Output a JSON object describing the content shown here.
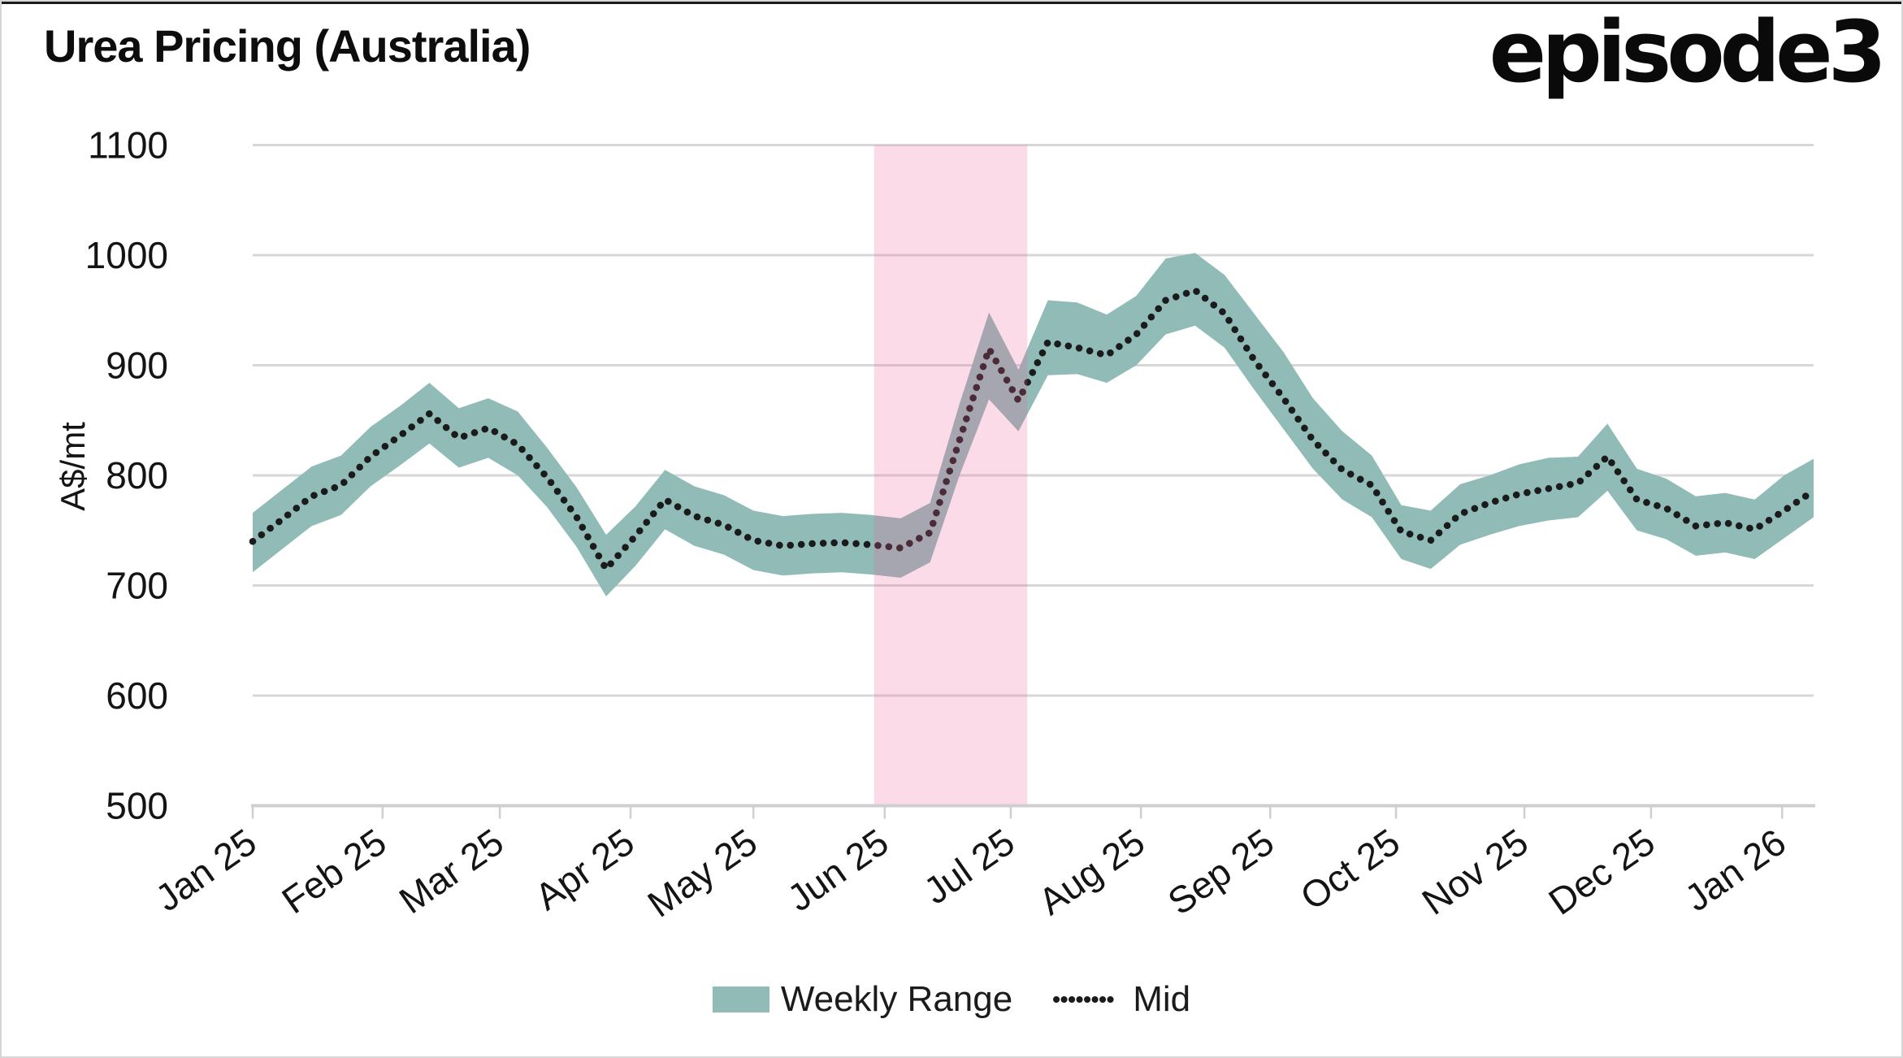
{
  "header": {
    "title": "Urea Pricing (Australia)",
    "logo": "episode3"
  },
  "chart_data": {
    "type": "area",
    "subtype": "range-band-with-dotted-mid-line",
    "title": "Urea Pricing (Australia)",
    "xlabel": "",
    "ylabel": "A$/mt",
    "ylim": [
      500,
      1100
    ],
    "y_ticks": [
      1100,
      1000,
      900,
      800,
      700,
      600,
      500
    ],
    "grid": "horizontal",
    "legend_position": "bottom-center",
    "months": [
      {
        "label": "Jan 25",
        "week": 0
      },
      {
        "label": "Feb 25",
        "week": 4.41
      },
      {
        "label": "Mar 25",
        "week": 8.39
      },
      {
        "label": "Apr 25",
        "week": 12.83
      },
      {
        "label": "May 25",
        "week": 17.0
      },
      {
        "label": "Jun 25",
        "week": 21.46
      },
      {
        "label": "Jul 25",
        "week": 25.74
      },
      {
        "label": "Aug 25",
        "week": 30.16
      },
      {
        "label": "Sep 25",
        "week": 34.55
      },
      {
        "label": "Oct 25",
        "week": 38.82
      },
      {
        "label": "Nov 25",
        "week": 43.18
      },
      {
        "label": "Dec 25",
        "week": 47.48
      },
      {
        "label": "Jan 26",
        "week": 51.93
      }
    ],
    "series": [
      {
        "name": "Weekly Range",
        "type": "band",
        "lo": [
          712,
          733,
          754,
          764,
          790,
          809,
          829,
          807,
          816,
          800,
          771,
          735,
          690,
          718,
          751,
          736,
          728,
          714,
          709,
          711,
          712,
          710,
          707,
          721,
          800,
          869,
          840,
          891,
          892,
          884,
          900,
          928,
          936,
          916,
          878,
          842,
          806,
          778,
          762,
          724,
          715,
          737,
          746,
          754,
          759,
          762,
          786,
          750,
          742,
          727,
          730,
          724,
          743,
          762
        ],
        "hi": [
          766,
          787,
          808,
          818,
          844,
          863,
          884,
          861,
          870,
          858,
          825,
          789,
          746,
          772,
          805,
          790,
          782,
          768,
          763,
          765,
          766,
          764,
          761,
          775,
          865,
          948,
          896,
          959,
          957,
          946,
          963,
          997,
          1002,
          982,
          947,
          912,
          870,
          840,
          818,
          773,
          768,
          792,
          800,
          810,
          816,
          817,
          847,
          806,
          797,
          781,
          784,
          778,
          800,
          815
        ]
      },
      {
        "name": "Mid",
        "type": "dotted-line",
        "values": [
          740,
          760,
          781,
          791,
          817,
          836,
          856,
          834,
          843,
          828,
          798,
          762,
          715,
          745,
          778,
          763,
          755,
          741,
          736,
          738,
          739,
          737,
          734,
          748,
          832,
          915,
          868,
          921,
          916,
          909,
          928,
          959,
          968,
          947,
          905,
          870,
          832,
          805,
          791,
          749,
          741,
          765,
          775,
          783,
          788,
          793,
          817,
          778,
          770,
          754,
          757,
          751,
          768,
          786
        ]
      }
    ],
    "highlight": {
      "start_week": 21.1,
      "end_week": 26.3,
      "color": "rgba(242,98,155,0.23)"
    },
    "legend": [
      {
        "label": "Weekly Range",
        "swatch": "band"
      },
      {
        "label": "Mid",
        "swatch": "dotted-line"
      }
    ],
    "colors": {
      "band": "#90BBB7",
      "mid": "#1B1B1B",
      "gridline": "#D7D7D7",
      "axis": "#CFCFCF",
      "text": "#141414",
      "highlight": "rgba(242,98,155,0.23)"
    }
  }
}
